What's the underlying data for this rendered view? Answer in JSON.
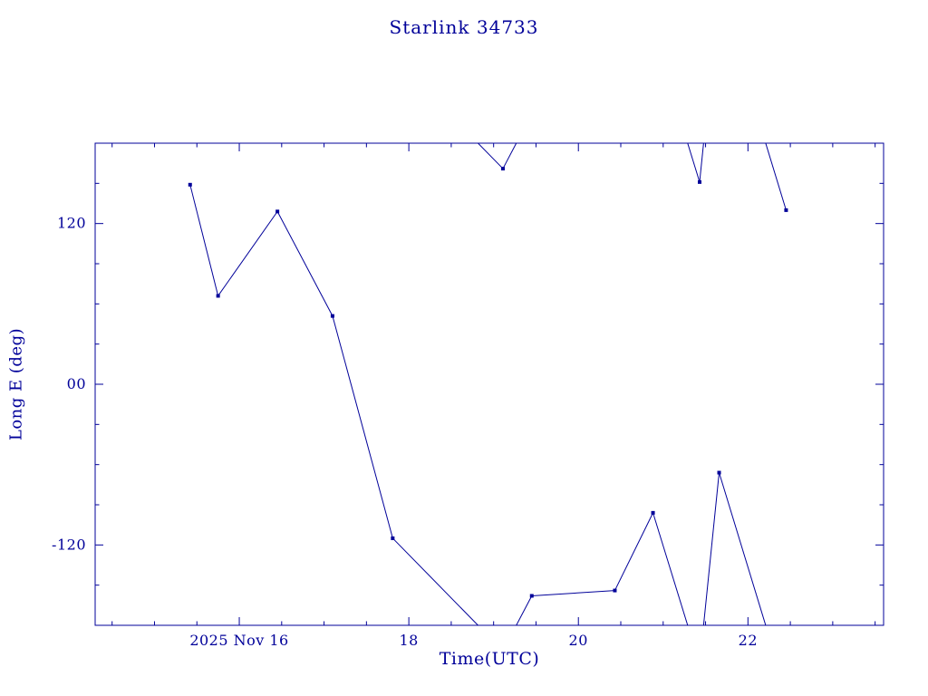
{
  "chart_data": {
    "type": "line",
    "title": "Starlink 34733",
    "xlabel": "Time(UTC)",
    "ylabel": "Long E (deg)",
    "xlim": [
      14.3,
      23.6
    ],
    "ylim": [
      -180,
      180
    ],
    "wrap_span": 360,
    "grid": false,
    "legend": null,
    "color": "#000099",
    "x_ticks": [
      {
        "value": 16,
        "label": "2025 Nov 16"
      },
      {
        "value": 18,
        "label": "18"
      },
      {
        "value": 20,
        "label": "20"
      },
      {
        "value": 22,
        "label": "22"
      }
    ],
    "x_minor_step": 0.5,
    "y_ticks": [
      {
        "value": 120,
        "label": "120"
      },
      {
        "value": 0,
        "label": "00"
      },
      {
        "value": -120,
        "label": "-120"
      }
    ],
    "y_minor_step": 30,
    "series": [
      {
        "name": "longitude-east",
        "marker": "square",
        "points": [
          [
            15.42,
            149
          ],
          [
            15.75,
            66
          ],
          [
            16.45,
            129
          ],
          [
            17.1,
            51
          ],
          [
            17.81,
            -115
          ],
          [
            19.11,
            161
          ],
          [
            19.45,
            -158
          ],
          [
            20.43,
            -154
          ],
          [
            20.88,
            -96
          ],
          [
            21.43,
            151
          ],
          [
            21.66,
            -66
          ],
          [
            22.45,
            130
          ]
        ]
      }
    ]
  }
}
